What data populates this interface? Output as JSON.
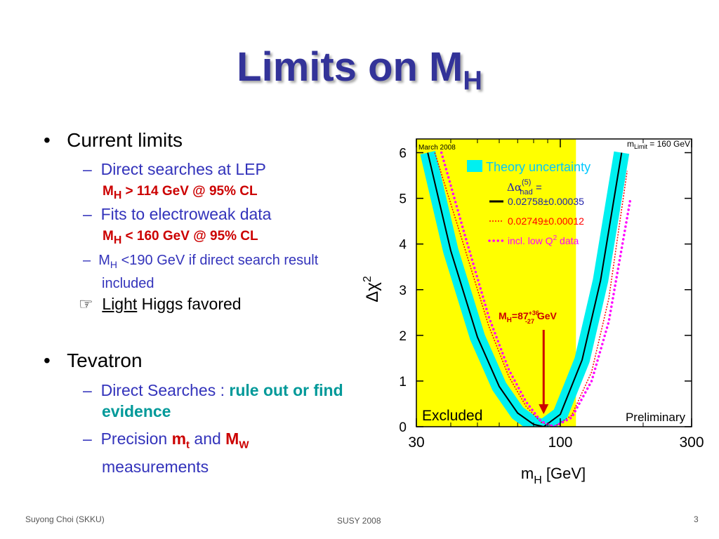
{
  "title": "Limits on M",
  "title_sub": "H",
  "content": {
    "current": "Current limits",
    "lep": "Direct searches at LEP",
    "lep_limit": [
      "M",
      "H",
      " > 114 GeV @ 95% CL"
    ],
    "ew": "Fits to electroweak data",
    "ew_limit": [
      "M",
      "H",
      " < 160 GeV @ 95% CL"
    ],
    "direct": [
      "M",
      "H",
      " <190 GeV if direct search result included"
    ],
    "light_icon": "☞",
    "light": [
      "Light",
      " Higgs favored"
    ],
    "tevatron": "Tevatron",
    "searches": [
      "Direct Searches : ",
      "rule out or find evidence"
    ],
    "precision": [
      "Precision ",
      "m",
      "t",
      " and ",
      "M",
      "W",
      " measurements"
    ]
  },
  "footer": {
    "left": "Suyong Choi (SKKU)",
    "center": "SUSY 2008",
    "right": "3"
  },
  "chart_data": {
    "type": "line",
    "corner_left": "March 2008",
    "corner_right": [
      "m",
      "Limit",
      " = 160 GeV"
    ],
    "ylabel": [
      "Δχ",
      "2"
    ],
    "xlabel": [
      "m",
      "H",
      " [GeV]"
    ],
    "excluded_label": "Excluded",
    "preliminary": "Preliminary",
    "excluded_max": 114,
    "excluded_color": "#ffff00",
    "band_label": "Theory uncertainty",
    "band_color": "#00f0f0",
    "legend_title": [
      "Δα",
      "(5)",
      "had",
      " ="
    ],
    "annotation": [
      "M",
      "H",
      "=87",
      "+36",
      "-27",
      " GeV"
    ],
    "annotation_x": 87,
    "log_x": true,
    "xlim": [
      30,
      300
    ],
    "xticks": [
      30,
      100,
      300
    ],
    "xminor": [
      40,
      50,
      60,
      70,
      80,
      90,
      200
    ],
    "ylim": [
      0,
      6.3
    ],
    "yticks": [
      0,
      1,
      2,
      3,
      4,
      5,
      6
    ],
    "series": [
      {
        "name": "0.02758±0.00035",
        "color": "#000000",
        "style": "solid",
        "band": true,
        "x": [
          33,
          40,
          50,
          60,
          70,
          80,
          87,
          100,
          120,
          140,
          167
        ],
        "values": [
          6,
          3.85,
          1.96,
          0.88,
          0.3,
          0.05,
          0,
          0.27,
          1.46,
          3.2,
          6
        ]
      },
      {
        "name": "0.02749±0.00012",
        "color": "#ff0000",
        "style": "dotted",
        "x": [
          35,
          45,
          55,
          65,
          75,
          85,
          95,
          110,
          130,
          150,
          175
        ],
        "values": [
          6,
          3.9,
          2.2,
          1.1,
          0.45,
          0.1,
          0,
          0.25,
          1.2,
          2.8,
          5.6
        ]
      },
      {
        "legend_parts": [
          "incl. low Q",
          "2",
          " data"
        ],
        "color": "#ff00ff",
        "style": "dots",
        "x": [
          37,
          45,
          55,
          65,
          75,
          85,
          95,
          110,
          130,
          150,
          180
        ],
        "values": [
          6,
          4.2,
          2.4,
          1.25,
          0.55,
          0.12,
          0,
          0.2,
          1.0,
          2.3,
          5.0
        ]
      }
    ]
  }
}
